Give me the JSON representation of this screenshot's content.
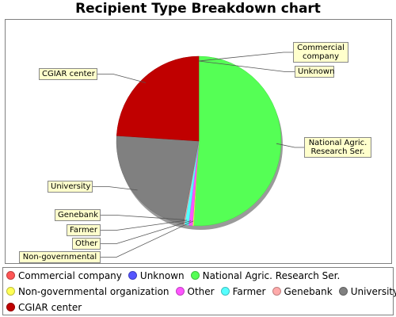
{
  "chart_data": {
    "type": "pie",
    "title": "Recipient Type Breakdown chart",
    "categories": [
      "Commercial company",
      "Unknown",
      "National Agric. Research Ser.",
      "Non-governmental organization",
      "Other",
      "Farmer",
      "Genebank",
      "University",
      "CGIAR center"
    ],
    "values": [
      0.0,
      0.0,
      51.0,
      0.2,
      0.8,
      0.8,
      0.2,
      23.0,
      24.0
    ],
    "colors": [
      "#ff5555",
      "#5555ff",
      "#55ff55",
      "#ffff55",
      "#ff55ff",
      "#55ffff",
      "#ffaaaa",
      "#808080",
      "#c00000"
    ],
    "slice_labels": [
      "Commercial\ncompany",
      "Unknown",
      "National Agric.\nResearch Ser.",
      "Non-governmental",
      "Other",
      "Farmer",
      "Genebank",
      "University",
      "CGIAR center"
    ],
    "legend_position": "bottom"
  }
}
